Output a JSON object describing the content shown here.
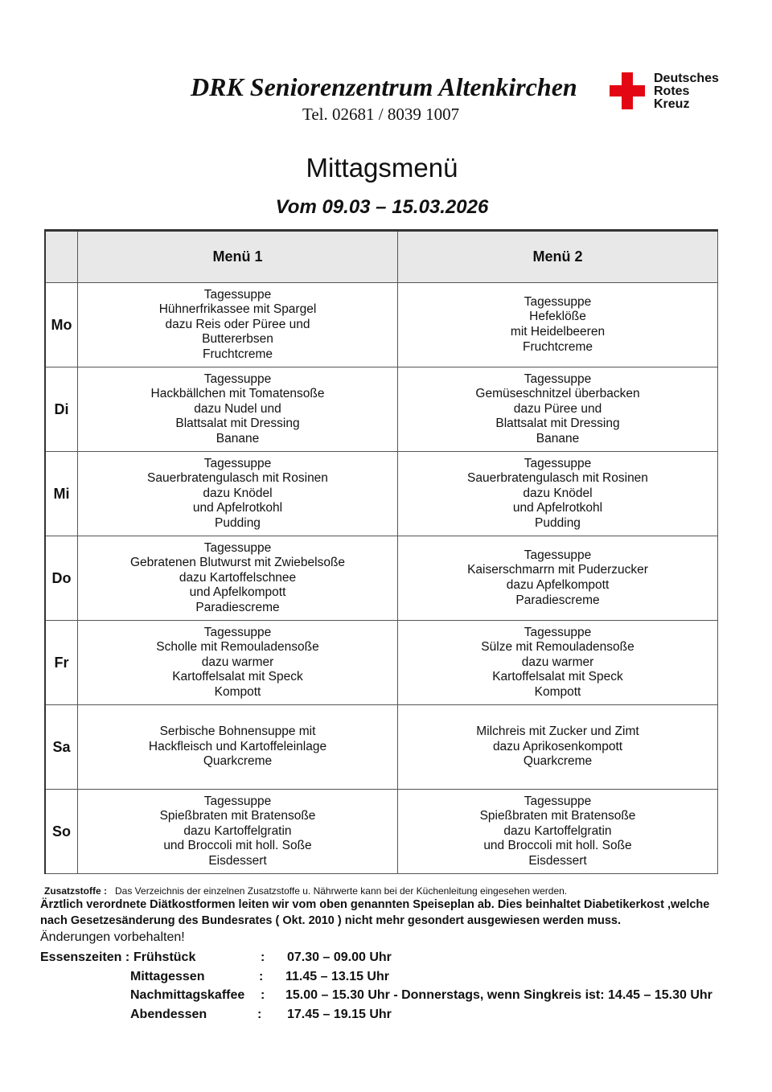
{
  "header": {
    "title": "DRK Seniorenzentrum Altenkirchen",
    "tel": "Tel. 02681 / 8039 1007",
    "logo_text": "Deutsches\nRotes\nKreuz",
    "logo_color": "#e30613"
  },
  "heading": "Mittagsmenü",
  "period": "Vom 09.03 – 15.03.2026",
  "table": {
    "headers": [
      "",
      "Menü 1",
      "Menü 2"
    ],
    "rows": [
      {
        "day": "Mo",
        "menu1": [
          "Tagessuppe",
          "Hühnerfrikassee mit Spargel",
          "dazu Reis oder Püree und",
          "Buttererbsen",
          "Fruchtcreme"
        ],
        "menu2": [
          "Tagessuppe",
          "Hefeklöße",
          "mit Heidelbeeren",
          "Fruchtcreme"
        ]
      },
      {
        "day": "Di",
        "menu1": [
          "Tagessuppe",
          "Hackbällchen mit Tomatensoße",
          "dazu Nudel und",
          "Blattsalat mit Dressing",
          "Banane"
        ],
        "menu2": [
          "Tagessuppe",
          "Gemüseschnitzel überbacken",
          "dazu Püree und",
          "Blattsalat mit Dressing",
          "Banane"
        ]
      },
      {
        "day": "Mi",
        "menu1": [
          "Tagessuppe",
          "Sauerbratengulasch mit Rosinen",
          "dazu Knödel",
          "und Apfelrotkohl",
          "Pudding"
        ],
        "menu2": [
          "Tagessuppe",
          "Sauerbratengulasch mit Rosinen",
          "dazu Knödel",
          "und Apfelrotkohl",
          "Pudding"
        ]
      },
      {
        "day": "Do",
        "menu1": [
          "Tagessuppe",
          "Gebratenen Blutwurst mit Zwiebelsoße",
          "dazu Kartoffelschnee",
          "und Apfelkompott",
          "Paradiescreme"
        ],
        "menu2": [
          "Tagessuppe",
          "Kaiserschmarrn mit Puderzucker",
          "dazu Apfelkompott",
          "Paradiescreme"
        ]
      },
      {
        "day": "Fr",
        "menu1": [
          "Tagessuppe",
          "Scholle mit Remouladensoße",
          "dazu warmer",
          "Kartoffelsalat mit Speck",
          "Kompott"
        ],
        "menu2": [
          "Tagessuppe",
          "Sülze mit Remouladensoße",
          "dazu warmer",
          "Kartoffelsalat mit Speck",
          "Kompott"
        ]
      },
      {
        "day": "Sa",
        "menu1": [
          "Serbische Bohnensuppe mit",
          "Hackfleisch und Kartoffeleinlage",
          "Quarkcreme"
        ],
        "menu2": [
          "Milchreis mit Zucker und Zimt",
          "dazu Aprikosenkompott",
          "Quarkcreme"
        ]
      },
      {
        "day": "So",
        "menu1": [
          "Tagessuppe",
          "Spießbraten mit Bratensoße",
          "dazu  Kartoffelgratin",
          "und Broccoli mit holl. Soße",
          "Eisdessert"
        ],
        "menu2": [
          "Tagessuppe",
          "Spießbraten mit Bratensoße",
          "dazu  Kartoffelgratin",
          "und Broccoli mit holl. Soße",
          "Eisdessert"
        ]
      }
    ]
  },
  "notes": {
    "zusatz_label": "Zusatzstoffe :",
    "zusatz_text": "Das Verzeichnis der einzelnen Zusatzstoffe u. Nährwerte kann bei der Küchenleitung eingesehen werden.",
    "diet_line1": "Ärztlich verordnete Diätkostformen leiten wir vom oben genannten Speiseplan ab. Dies beinhaltet Diabetikerkost ,welche",
    "diet_line2": "nach Gesetzesänderung des Bundesrates ( Okt. 2010 )  nicht mehr gesondert ausgewiesen werden muss.",
    "changes": "Änderungen vorbehalten!"
  },
  "times": {
    "label": "Essenszeiten :",
    "items": [
      {
        "meal": "Frühstück",
        "sep": ":",
        "time": "07.30 – 09.00  Uhr"
      },
      {
        "meal": "Mittagessen",
        "sep": ":",
        "time": "11.45 – 13.15  Uhr"
      },
      {
        "meal": "Nachmittagskaffee",
        "sep": ":",
        "time": "15.00 – 15.30  Uhr - Donnerstags, wenn Singkreis ist: 14.45 – 15.30 Uhr"
      },
      {
        "meal": "Abendessen",
        "sep": ":",
        "time": "17.45 – 19.15 Uhr"
      }
    ]
  }
}
